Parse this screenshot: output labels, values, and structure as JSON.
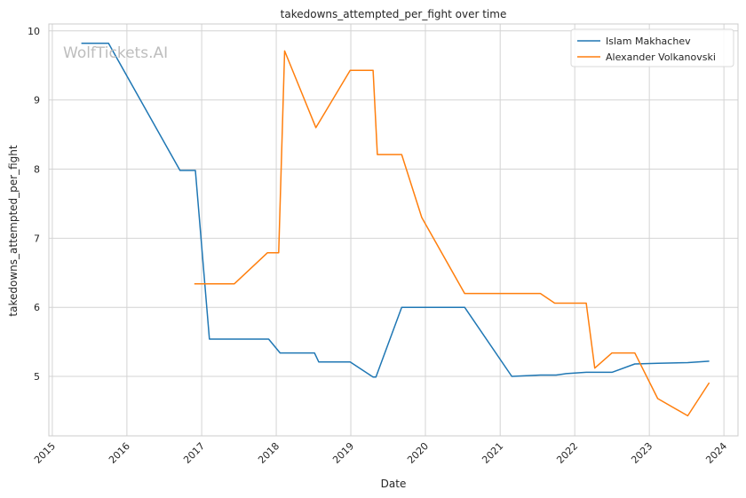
{
  "chart_data": {
    "type": "line",
    "title": "takedowns_attempted_per_fight over time",
    "xlabel": "Date",
    "ylabel": "takedowns_attempted_per_fight",
    "watermark": "WolfTickets.AI",
    "xlim": [
      "2014-12-15",
      "2024-03-10"
    ],
    "ylim": [
      4.14,
      10.1
    ],
    "x_ticks": [
      "2015",
      "2016",
      "2017",
      "2018",
      "2019",
      "2020",
      "2021",
      "2022",
      "2023",
      "2024"
    ],
    "y_ticks": [
      "5",
      "6",
      "7",
      "8",
      "9",
      "10"
    ],
    "grid": true,
    "legend_position": "top-right",
    "series": [
      {
        "name": "Islam Makhachev",
        "color": "#1f77b4",
        "points": [
          [
            "2015-05-23",
            9.82
          ],
          [
            "2015-10-03",
            9.82
          ],
          [
            "2016-09-17",
            7.98
          ],
          [
            "2016-12-01",
            7.98
          ],
          [
            "2017-02-08",
            5.54
          ],
          [
            "2017-11-25",
            5.54
          ],
          [
            "2018-01-20",
            5.34
          ],
          [
            "2018-07-07",
            5.34
          ],
          [
            "2018-07-28",
            5.21
          ],
          [
            "2018-12-29",
            5.21
          ],
          [
            "2019-04-20",
            4.99
          ],
          [
            "2019-05-04",
            4.99
          ],
          [
            "2019-09-07",
            6.0
          ],
          [
            "2020-07-11",
            6.0
          ],
          [
            "2021-02-27",
            5.0
          ],
          [
            "2021-07-17",
            5.02
          ],
          [
            "2021-10-02",
            5.02
          ],
          [
            "2021-11-20",
            5.04
          ],
          [
            "2022-02-26",
            5.06
          ],
          [
            "2022-07-02",
            5.06
          ],
          [
            "2022-10-22",
            5.18
          ],
          [
            "2023-02-11",
            5.19
          ],
          [
            "2023-07-08",
            5.2
          ],
          [
            "2023-10-21",
            5.22
          ]
        ]
      },
      {
        "name": "Alexander Volkanovski",
        "color": "#ff7f0e",
        "points": [
          [
            "2016-11-26",
            6.34
          ],
          [
            "2017-06-10",
            6.34
          ],
          [
            "2017-11-19",
            6.79
          ],
          [
            "2018-01-13",
            6.79
          ],
          [
            "2018-02-11",
            9.71
          ],
          [
            "2018-07-14",
            8.6
          ],
          [
            "2018-12-29",
            9.43
          ],
          [
            "2019-04-20",
            9.43
          ],
          [
            "2019-05-11",
            8.21
          ],
          [
            "2019-09-07",
            8.21
          ],
          [
            "2019-12-14",
            7.3
          ],
          [
            "2020-07-11",
            6.2
          ],
          [
            "2021-07-17",
            6.2
          ],
          [
            "2021-09-25",
            6.06
          ],
          [
            "2022-02-26",
            6.06
          ],
          [
            "2022-04-09",
            5.12
          ],
          [
            "2022-07-02",
            5.34
          ],
          [
            "2022-10-22",
            5.34
          ],
          [
            "2023-02-11",
            4.68
          ],
          [
            "2023-07-08",
            4.43
          ],
          [
            "2023-10-21",
            4.91
          ]
        ]
      }
    ]
  }
}
